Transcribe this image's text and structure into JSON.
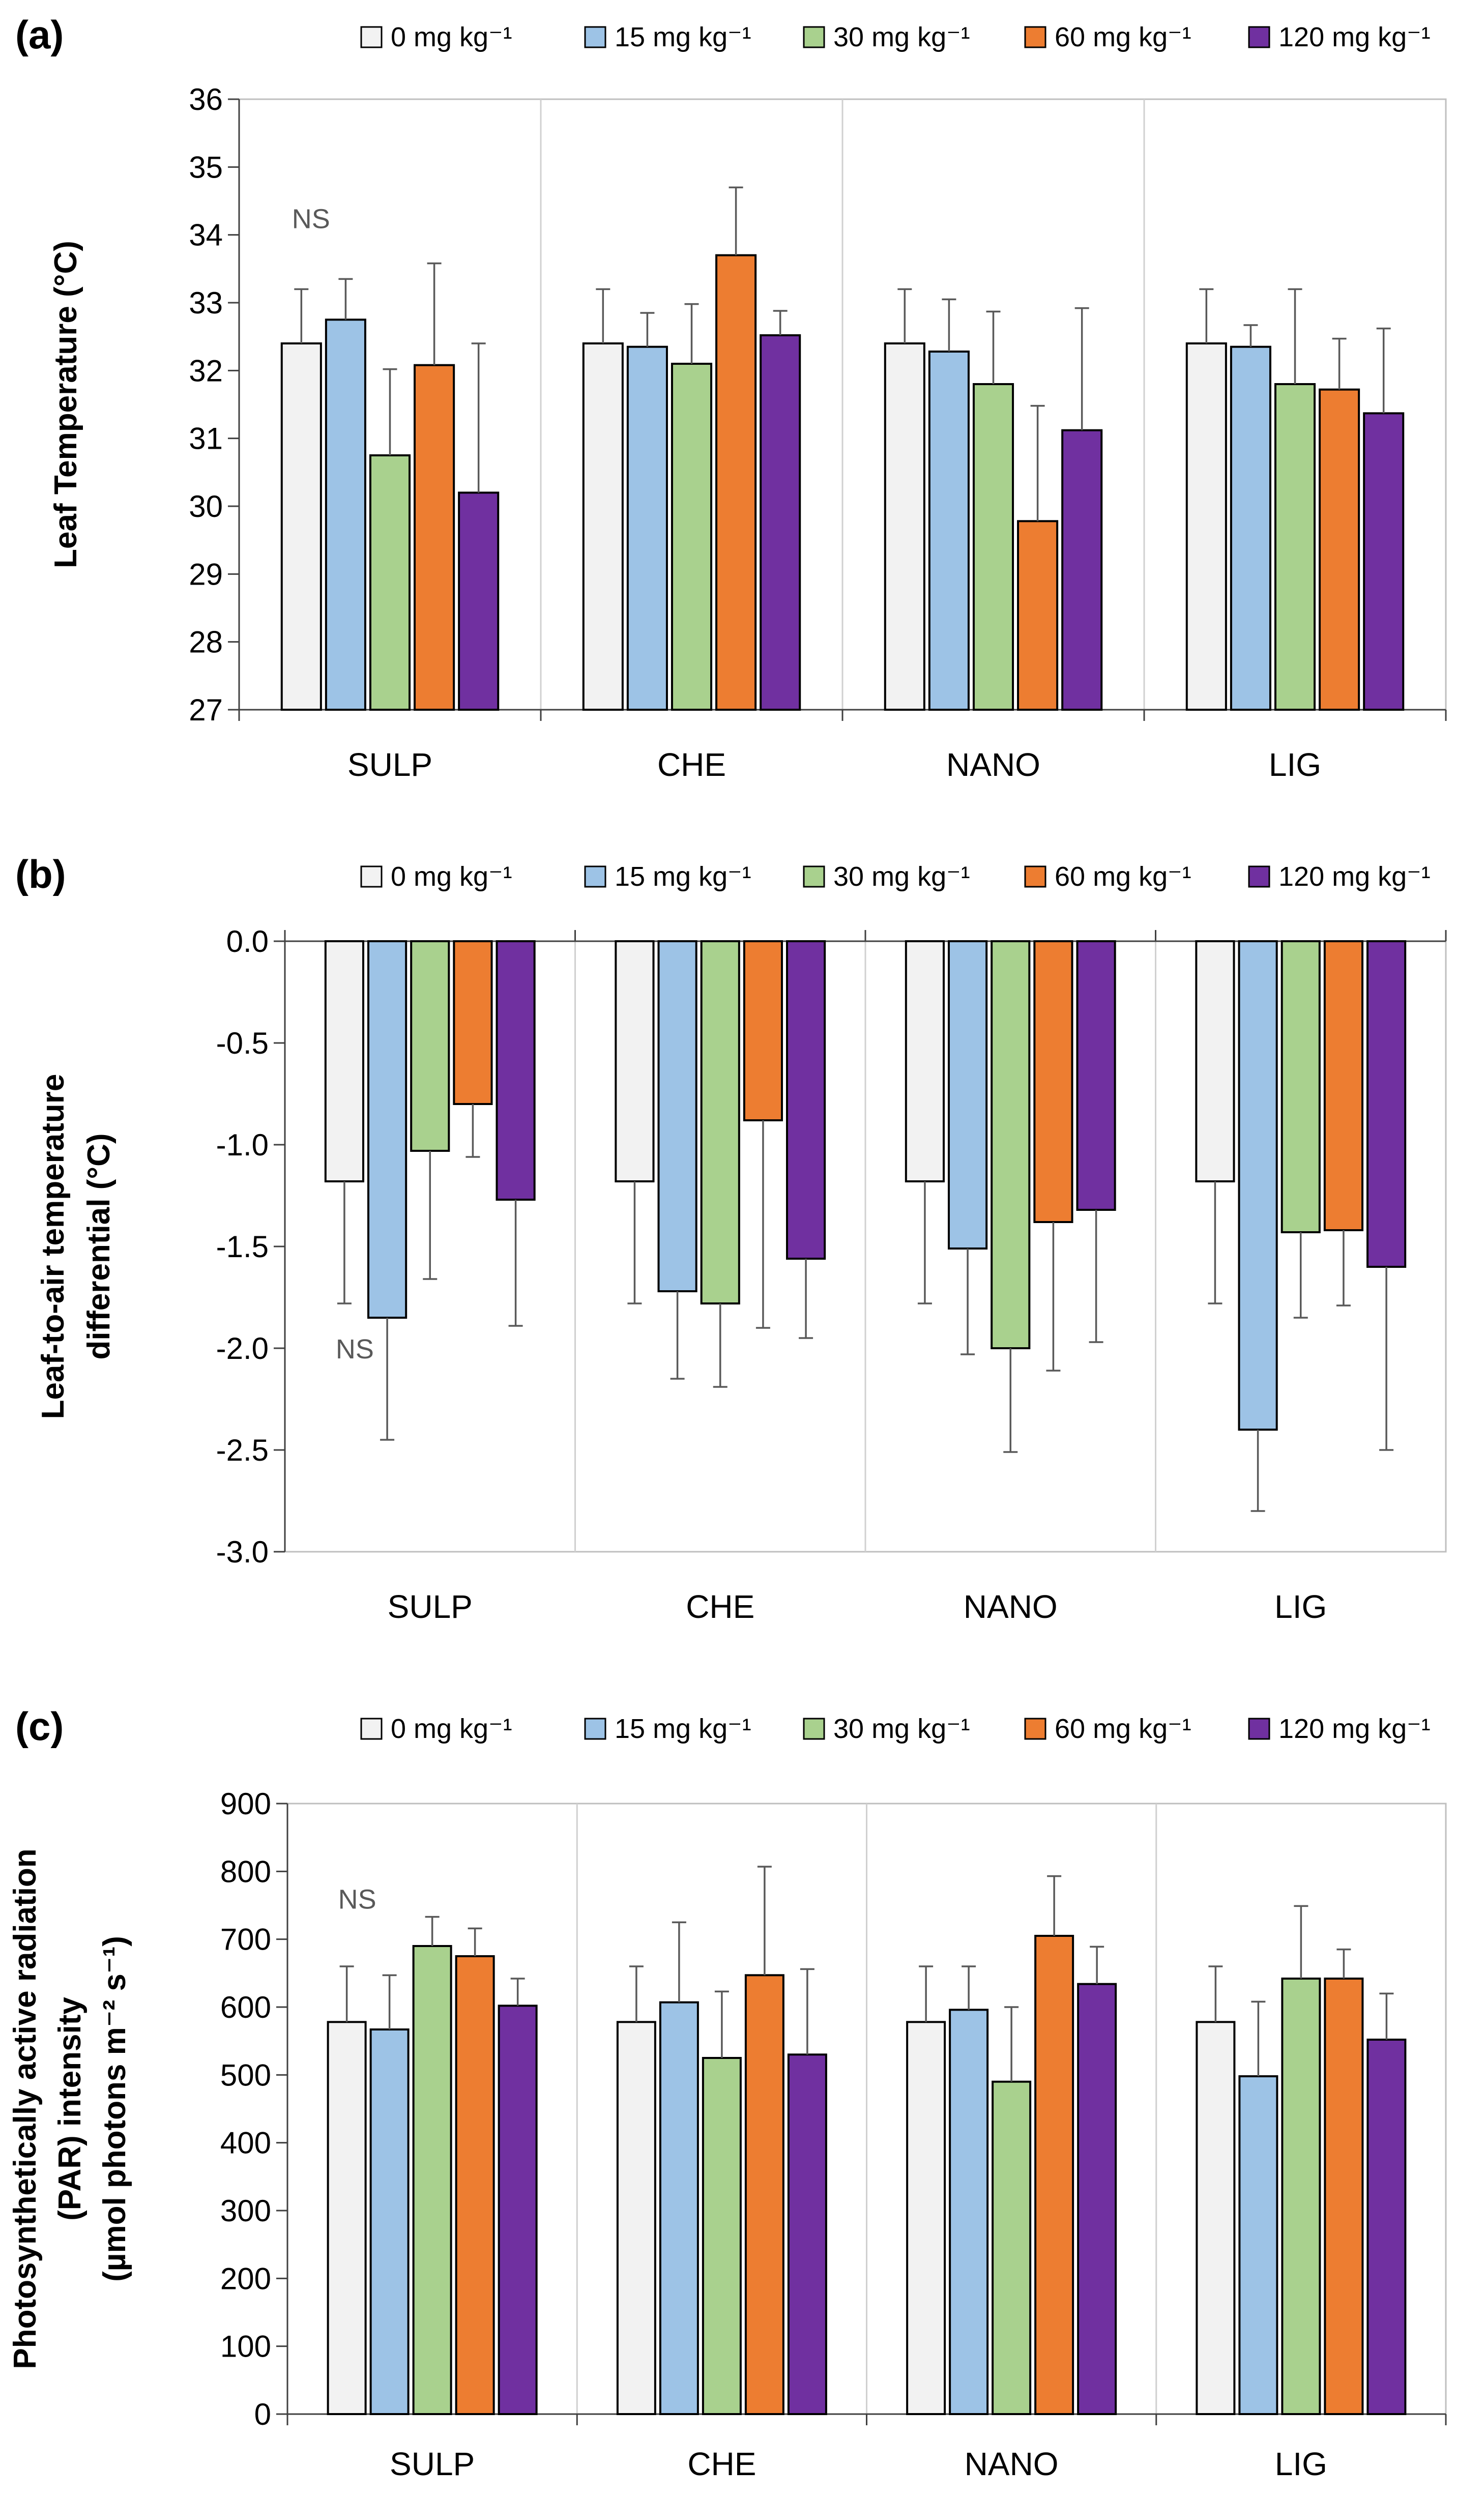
{
  "legend": [
    {
      "label": "0 mg kg⁻¹",
      "color": "#F2F2F2"
    },
    {
      "label": "15 mg kg⁻¹",
      "color": "#9DC3E6"
    },
    {
      "label": "30 mg kg⁻¹",
      "color": "#A9D18E"
    },
    {
      "label": "60 mg kg⁻¹",
      "color": "#ED7D31"
    },
    {
      "label": "120 mg kg⁻¹",
      "color": "#7030A0"
    }
  ],
  "chart_data": [
    {
      "type": "bar",
      "panel": "(a)",
      "ylabel": "Leaf Temperature (°C)",
      "xlabel": "",
      "ylim": [
        27,
        36
      ],
      "yticks": [
        27,
        28,
        29,
        30,
        31,
        32,
        33,
        34,
        35,
        36
      ],
      "ytick_labels": [
        "27",
        "28",
        "29",
        "30",
        "31",
        "32",
        "33",
        "34",
        "35",
        "36"
      ],
      "categories": [
        "SULP",
        "CHE",
        "NANO",
        "LIG"
      ],
      "annotation": "NS",
      "series": [
        {
          "name": "0 mg kg⁻¹",
          "values": [
            32.4,
            32.4,
            32.4,
            32.4
          ],
          "errors": [
            0.8,
            0.8,
            0.8,
            0.8
          ]
        },
        {
          "name": "15 mg kg⁻¹",
          "values": [
            32.75,
            32.35,
            32.28,
            32.35
          ],
          "errors": [
            0.6,
            0.5,
            0.77,
            0.32
          ]
        },
        {
          "name": "30 mg kg⁻¹",
          "values": [
            30.75,
            32.1,
            31.8,
            31.8
          ],
          "errors": [
            1.27,
            0.88,
            1.07,
            1.4
          ]
        },
        {
          "name": "60 mg kg⁻¹",
          "values": [
            32.08,
            33.7,
            29.78,
            31.72
          ],
          "errors": [
            1.5,
            1.0,
            1.7,
            0.75
          ]
        },
        {
          "name": "120 mg kg⁻¹",
          "values": [
            30.2,
            32.52,
            31.12,
            31.37
          ],
          "errors": [
            2.2,
            0.36,
            1.8,
            1.25
          ]
        }
      ]
    },
    {
      "type": "bar",
      "panel": "(b)",
      "ylabel": "Leaf-to-air temperature differential (°C)",
      "xlabel": "",
      "ylim": [
        -3.0,
        0.0
      ],
      "yticks": [
        0.0,
        -0.5,
        -1.0,
        -1.5,
        -2.0,
        -2.5,
        -3.0
      ],
      "ytick_labels": [
        "0.0",
        "-0.5",
        "-1.0",
        "-1.5",
        "-2.0",
        "-2.5",
        "-3.0"
      ],
      "categories": [
        "SULP",
        "CHE",
        "NANO",
        "LIG"
      ],
      "annotation": "NS",
      "series": [
        {
          "name": "0 mg kg⁻¹",
          "values": [
            -1.18,
            -1.18,
            -1.18,
            -1.18
          ],
          "errors": [
            0.6,
            0.6,
            0.6,
            0.6
          ]
        },
        {
          "name": "15 mg kg⁻¹",
          "values": [
            -1.85,
            -1.72,
            -1.51,
            -2.4
          ],
          "errors": [
            0.6,
            0.43,
            0.52,
            0.4
          ]
        },
        {
          "name": "30 mg kg⁻¹",
          "values": [
            -1.03,
            -1.78,
            -2.0,
            -1.43
          ],
          "errors": [
            0.63,
            0.41,
            0.51,
            0.42
          ]
        },
        {
          "name": "60 mg kg⁻¹",
          "values": [
            -0.8,
            -0.88,
            -1.38,
            -1.42
          ],
          "errors": [
            0.26,
            1.02,
            0.73,
            0.37
          ]
        },
        {
          "name": "120 mg kg⁻¹",
          "values": [
            -1.27,
            -1.56,
            -1.32,
            -1.6
          ],
          "errors": [
            0.62,
            0.39,
            0.65,
            0.9
          ]
        }
      ]
    },
    {
      "type": "bar",
      "panel": "(c)",
      "ylabel": "Photosynthetically active radiation (PAR) intensity (µmol photons m⁻² s⁻¹)",
      "xlabel": "",
      "ylim": [
        0,
        900
      ],
      "yticks": [
        0,
        100,
        200,
        300,
        400,
        500,
        600,
        700,
        800,
        900
      ],
      "ytick_labels": [
        "0",
        "100",
        "200",
        "300",
        "400",
        "500",
        "600",
        "700",
        "800",
        "900"
      ],
      "categories": [
        "SULP",
        "CHE",
        "NANO",
        "LIG"
      ],
      "annotation": "NS",
      "series": [
        {
          "name": "0 mg kg⁻¹",
          "values": [
            578,
            578,
            578,
            578
          ],
          "errors": [
            82,
            82,
            82,
            82
          ]
        },
        {
          "name": "15 mg kg⁻¹",
          "values": [
            567,
            607,
            596,
            498
          ],
          "errors": [
            80,
            118,
            64,
            110
          ]
        },
        {
          "name": "30 mg kg⁻¹",
          "values": [
            690,
            525,
            490,
            642
          ],
          "errors": [
            43,
            98,
            110,
            107
          ]
        },
        {
          "name": "60 mg kg⁻¹",
          "values": [
            675,
            647,
            705,
            642
          ],
          "errors": [
            41,
            160,
            88,
            43
          ]
        },
        {
          "name": "120 mg kg⁻¹",
          "values": [
            602,
            530,
            634,
            552
          ],
          "errors": [
            40,
            126,
            55,
            68
          ]
        }
      ]
    }
  ]
}
